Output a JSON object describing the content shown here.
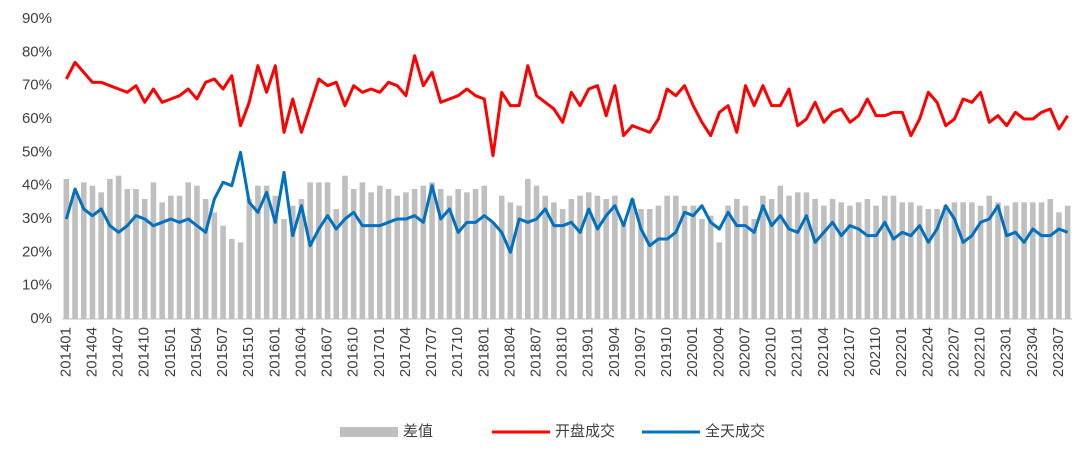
{
  "chart_data": {
    "type": "bar_line",
    "categories": [
      "201401",
      null,
      null,
      "201404",
      null,
      null,
      "201407",
      null,
      null,
      "201410",
      null,
      null,
      "201501",
      null,
      null,
      "201504",
      null,
      null,
      "201507",
      null,
      null,
      "201510",
      null,
      null,
      "201601",
      null,
      null,
      "201604",
      null,
      null,
      "201607",
      null,
      null,
      "201610",
      null,
      null,
      "201701",
      null,
      null,
      "201704",
      null,
      null,
      "201707",
      null,
      null,
      "201710",
      null,
      null,
      "201801",
      null,
      null,
      "201804",
      null,
      null,
      "201807",
      null,
      null,
      "201810",
      null,
      null,
      "201901",
      null,
      null,
      "201904",
      null,
      null,
      "201907",
      null,
      null,
      "201910",
      null,
      null,
      "202001",
      null,
      null,
      "202004",
      null,
      null,
      "202007",
      null,
      null,
      "202010",
      null,
      null,
      "202101",
      null,
      null,
      "202104",
      null,
      null,
      "202107",
      null,
      null,
      "202110",
      null,
      null,
      "202201",
      null,
      null,
      "202204",
      null,
      null,
      "202207",
      null,
      null,
      "202210",
      null,
      null,
      "202301",
      null,
      null,
      "202304",
      null,
      null,
      "202307",
      null
    ],
    "series": [
      {
        "name": "差值",
        "kind": "bar",
        "color": "#bfbfbf",
        "values": [
          42,
          38,
          41,
          40,
          38,
          42,
          43,
          39,
          39,
          36,
          41,
          35,
          37,
          37,
          41,
          40,
          36,
          32,
          28,
          24,
          23,
          36,
          40,
          40,
          37,
          30,
          34,
          36,
          41,
          41,
          41,
          33,
          43,
          39,
          41,
          38,
          40,
          39,
          37,
          38,
          39,
          40,
          41,
          39,
          37,
          39,
          38,
          39,
          40,
          29,
          37,
          35,
          34,
          42,
          40,
          37,
          35,
          33,
          36,
          37,
          38,
          37,
          36,
          37,
          29,
          36,
          33,
          33,
          34,
          37,
          37,
          34,
          34,
          30,
          31,
          23,
          34,
          36,
          34,
          30,
          37,
          36,
          40,
          37,
          38,
          38,
          36,
          34,
          36,
          35,
          34,
          35,
          36,
          34,
          37,
          37,
          35,
          35,
          34,
          33,
          33,
          34,
          35,
          35,
          35,
          34,
          37,
          35,
          34,
          35,
          35,
          35,
          35,
          36,
          32,
          34
        ]
      },
      {
        "name": "开盘成交",
        "kind": "line",
        "color": "#ff0000",
        "values": [
          72,
          77,
          74,
          71,
          71,
          70,
          69,
          68,
          70,
          65,
          69,
          65,
          66,
          67,
          69,
          66,
          71,
          72,
          69,
          73,
          58,
          65,
          76,
          68,
          76,
          56,
          66,
          56,
          64,
          72,
          70,
          71,
          64,
          70,
          68,
          69,
          68,
          71,
          70,
          67,
          79,
          70,
          74,
          65,
          66,
          67,
          69,
          67,
          66,
          49,
          68,
          64,
          64,
          76,
          67,
          65,
          63,
          59,
          68,
          64,
          69,
          70,
          61,
          70,
          55,
          58,
          57,
          56,
          60,
          69,
          67,
          70,
          64,
          59,
          55,
          62,
          64,
          56,
          70,
          64,
          70,
          64,
          64,
          69,
          58,
          60,
          65,
          59,
          62,
          63,
          59,
          61,
          66,
          61,
          61,
          62,
          62,
          55,
          60,
          68,
          65,
          58,
          60,
          66,
          65,
          68,
          59,
          61,
          58,
          62,
          60,
          60,
          62,
          63,
          57,
          61
        ]
      },
      {
        "name": "全天成交",
        "kind": "line",
        "color": "#0070c0",
        "values": [
          30,
          39,
          33,
          31,
          33,
          28,
          26,
          28,
          31,
          30,
          28,
          29,
          30,
          29,
          30,
          28,
          26,
          36,
          41,
          40,
          50,
          35,
          32,
          38,
          29,
          44,
          25,
          34,
          22,
          27,
          31,
          27,
          30,
          32,
          28,
          28,
          28,
          29,
          30,
          30,
          31,
          29,
          40,
          30,
          33,
          26,
          29,
          29,
          31,
          29,
          26,
          20,
          30,
          29,
          30,
          33,
          28,
          28,
          29,
          26,
          33,
          27,
          31,
          34,
          28,
          36,
          27,
          22,
          24,
          24,
          26,
          32,
          31,
          34,
          29,
          27,
          32,
          28,
          28,
          26,
          34,
          28,
          31,
          27,
          26,
          31,
          23,
          26,
          29,
          25,
          28,
          27,
          25,
          25,
          29,
          24,
          26,
          25,
          28,
          23,
          27,
          34,
          30,
          23,
          25,
          29,
          30,
          34,
          25,
          26,
          23,
          27,
          25,
          25,
          27,
          26
        ]
      }
    ],
    "ylim": [
      0,
      90
    ],
    "yticks": [
      {
        "value": 0,
        "label": "0%"
      },
      {
        "value": 10,
        "label": "10%"
      },
      {
        "value": 20,
        "label": "20%"
      },
      {
        "value": 30,
        "label": "30%"
      },
      {
        "value": 40,
        "label": "40%"
      },
      {
        "value": 50,
        "label": "50%"
      },
      {
        "value": 60,
        "label": "60%"
      },
      {
        "value": 70,
        "label": "70%"
      },
      {
        "value": 80,
        "label": "80%"
      },
      {
        "value": 90,
        "label": "90%"
      }
    ],
    "grid": false,
    "legend": "bottom"
  }
}
